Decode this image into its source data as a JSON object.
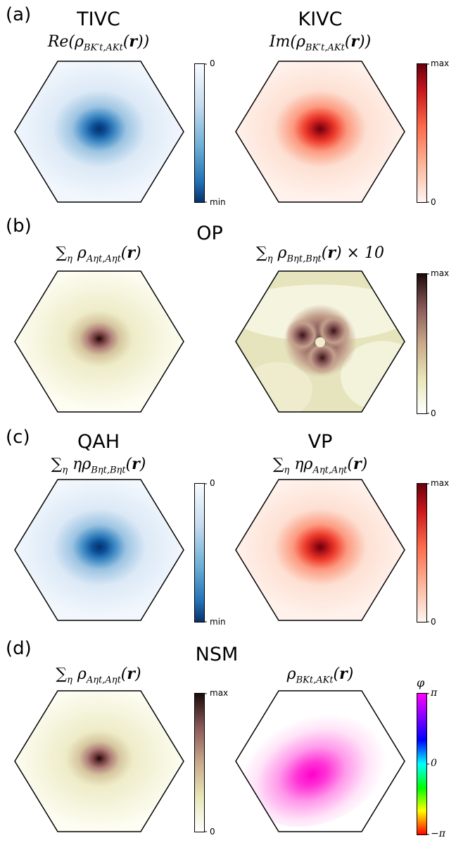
{
  "panels": {
    "a": {
      "label": "(a)",
      "left": {
        "title": "TIVC",
        "formula": "Re(ρ_BK't,AKt(r))"
      },
      "right": {
        "title": "KIVC",
        "formula": "Im(ρ_BK't,AKt(r))"
      },
      "left_cbar": {
        "top": "0",
        "bottom": "min"
      },
      "right_cbar": {
        "top": "max",
        "bottom": "0"
      }
    },
    "b": {
      "label": "(b)",
      "center_title": "OP",
      "left": {
        "formula": "∑η ρ_Aηt,Aηt(r)"
      },
      "right": {
        "formula": "∑η ρ_Bηt,Bηt(r) × 10"
      },
      "right_cbar": {
        "top": "max",
        "bottom": "0"
      }
    },
    "c": {
      "label": "(c)",
      "left": {
        "title": "QAH",
        "formula": "∑η ηρ_Bηt,Bηt(r)"
      },
      "right": {
        "title": "VP",
        "formula": "∑η ηρ_Aηt,Aηt(r)"
      },
      "left_cbar": {
        "top": "0",
        "bottom": "min"
      },
      "right_cbar": {
        "top": "max",
        "bottom": "0"
      }
    },
    "d": {
      "label": "(d)",
      "center_title": "NSM",
      "left": {
        "formula": "∑η ρ_Aηt,Aηt(r)"
      },
      "right": {
        "formula": "ρ_BKt,AKt(r)"
      },
      "left_cbar": {
        "top": "max",
        "bottom": "0"
      },
      "right_cbar": {
        "label": "φ",
        "top": "π",
        "mid": "0",
        "bottom": "−π"
      }
    }
  },
  "colors": {
    "blue_dark": "#08306b",
    "blue_light": "#f7fbff",
    "red_dark": "#67000d",
    "red_light": "#fff5f0",
    "pink_dark": "#2b0b0b",
    "pink_light": "#fffff0",
    "magenta": "#ff00cc"
  }
}
